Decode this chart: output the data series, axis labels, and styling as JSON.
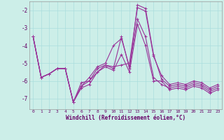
{
  "xlabel": "Windchill (Refroidissement éolien,°C)",
  "background_color": "#cceee8",
  "grid_color": "#aadddd",
  "line_color": "#993399",
  "xlim": [
    -0.5,
    23.5
  ],
  "ylim": [
    -7.6,
    -1.5
  ],
  "xticks": [
    0,
    1,
    2,
    3,
    4,
    5,
    6,
    7,
    8,
    9,
    10,
    11,
    12,
    13,
    14,
    15,
    16,
    17,
    18,
    19,
    20,
    21,
    22,
    23
  ],
  "yticks": [
    -7,
    -6,
    -5,
    -4,
    -3,
    -2
  ],
  "lines": [
    [
      -3.5,
      -5.8,
      -5.6,
      -5.3,
      -5.3,
      -7.2,
      -6.3,
      -6.0,
      -5.3,
      -5.1,
      -5.3,
      -3.5,
      -5.3,
      -1.7,
      -1.9,
      -4.5,
      -5.9,
      -6.3,
      -6.2,
      -6.3,
      -6.1,
      -6.2,
      -6.5,
      -6.3
    ],
    [
      -3.5,
      -5.8,
      -5.6,
      -5.3,
      -5.3,
      -7.2,
      -6.3,
      -5.8,
      -5.2,
      -5.0,
      -4.0,
      -3.6,
      -5.2,
      -2.5,
      -3.5,
      -5.8,
      -6.2,
      -6.4,
      -6.3,
      -6.4,
      -6.2,
      -6.3,
      -6.6,
      -6.4
    ],
    [
      -3.5,
      -5.8,
      -5.6,
      -5.3,
      -5.3,
      -7.2,
      -6.4,
      -6.2,
      -5.5,
      -5.2,
      -5.4,
      -4.5,
      -5.5,
      -2.8,
      -4.0,
      -6.0,
      -6.0,
      -6.5,
      -6.4,
      -6.5,
      -6.3,
      -6.4,
      -6.7,
      -6.5
    ],
    [
      -3.5,
      -5.8,
      -5.6,
      -5.3,
      -5.3,
      -7.2,
      -6.1,
      -6.0,
      -5.5,
      -5.1,
      -5.2,
      -5.1,
      -5.0,
      -1.85,
      -2.05,
      -4.6,
      -5.7,
      -6.2,
      -6.1,
      -6.2,
      -6.0,
      -6.1,
      -6.4,
      -6.2
    ]
  ]
}
